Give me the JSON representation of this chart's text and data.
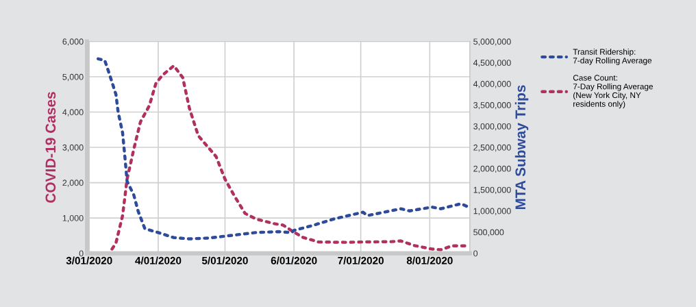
{
  "chart_data": {
    "type": "line",
    "ylabel": "COVID-19 Cases",
    "y2label": "MTA Subway Trips",
    "xlim": [
      "2020-02-29",
      "2020-08-19"
    ],
    "xticks": [
      {
        "value": "2020-03-01",
        "label": "3/01/2020"
      },
      {
        "value": "2020-04-01",
        "label": "4/01/2020"
      },
      {
        "value": "2020-05-01",
        "label": "5/01/2020"
      },
      {
        "value": "2020-06-01",
        "label": "6/01/2020"
      },
      {
        "value": "2020-07-01",
        "label": "7/01/2020"
      },
      {
        "value": "2020-08-01",
        "label": "8/01/2020"
      }
    ],
    "ylim": [
      0,
      6000
    ],
    "yticks": [
      {
        "value": 0,
        "label": "0"
      },
      {
        "value": 1000,
        "label": "1,000"
      },
      {
        "value": 2000,
        "label": "2,000"
      },
      {
        "value": 3000,
        "label": "3,000"
      },
      {
        "value": 4000,
        "label": "4,000"
      },
      {
        "value": 5000,
        "label": "5,000"
      },
      {
        "value": 6000,
        "label": "6,000"
      }
    ],
    "y2lim": [
      0,
      5000000
    ],
    "y2ticks": [
      {
        "value": 0,
        "label": "0"
      },
      {
        "value": 500000,
        "label": "500,000"
      },
      {
        "value": 1000000,
        "label": "1,000,000"
      },
      {
        "value": 1500000,
        "label": "1,500,000"
      },
      {
        "value": 2000000,
        "label": "2,000,000"
      },
      {
        "value": 2500000,
        "label": "2,500,000"
      },
      {
        "value": 3000000,
        "label": "3,000,000"
      },
      {
        "value": 3500000,
        "label": "3,500,000"
      },
      {
        "value": 4000000,
        "label": "4,000,000"
      },
      {
        "value": 4500000,
        "label": "4,500,000"
      },
      {
        "value": 5000000,
        "label": "5,000,000"
      }
    ],
    "grid": true,
    "legend": "right",
    "line_style": "dotted",
    "series": [
      {
        "name": "Transit Ridership:\n7-day Rolling Average",
        "color": "#2e4a9a",
        "axis": "y2",
        "x": [
          "2020-03-05",
          "2020-03-08",
          "2020-03-10",
          "2020-03-13",
          "2020-03-14",
          "2020-03-16",
          "2020-03-17",
          "2020-03-18",
          "2020-03-21",
          "2020-03-23",
          "2020-03-26",
          "2020-04-01",
          "2020-04-08",
          "2020-04-15",
          "2020-04-24",
          "2020-05-02",
          "2020-05-15",
          "2020-05-25",
          "2020-05-31",
          "2020-06-01",
          "2020-06-09",
          "2020-06-19",
          "2020-07-02",
          "2020-07-04",
          "2020-07-19",
          "2020-07-23",
          "2020-08-02",
          "2020-08-06",
          "2020-08-15",
          "2020-08-18"
        ],
        "values": [
          4590000,
          4550000,
          4240000,
          3750000,
          3330000,
          2840000,
          2290000,
          1700000,
          1380000,
          990000,
          580000,
          490000,
          370000,
          340000,
          360000,
          410000,
          490000,
          510000,
          490000,
          540000,
          650000,
          810000,
          970000,
          890000,
          1050000,
          1000000,
          1090000,
          1050000,
          1170000,
          1100000
        ]
      },
      {
        "name": "Case Count:\n7-Day Rolling Average\n(New York City, NY\nresidents only)",
        "color": "#b03060",
        "x": [
          "2020-03-05",
          "2020-03-10",
          "2020-03-13",
          "2020-03-16",
          "2020-03-18",
          "2020-03-21",
          "2020-03-24",
          "2020-03-28",
          "2020-03-31",
          "2020-04-03",
          "2020-04-08",
          "2020-04-12",
          "2020-04-15",
          "2020-04-19",
          "2020-04-27",
          "2020-05-01",
          "2020-05-05",
          "2020-05-10",
          "2020-05-15",
          "2020-05-23",
          "2020-05-27",
          "2020-06-01",
          "2020-06-05",
          "2020-06-12",
          "2020-06-24",
          "2020-07-02",
          "2020-07-15",
          "2020-07-19",
          "2020-07-25",
          "2020-08-02",
          "2020-08-06",
          "2020-08-11",
          "2020-08-18"
        ],
        "values": [
          0,
          0,
          290,
          1070,
          2100,
          2940,
          3720,
          4180,
          4820,
          5050,
          5310,
          4980,
          4110,
          3330,
          2740,
          2100,
          1650,
          1130,
          970,
          840,
          800,
          600,
          450,
          320,
          310,
          320,
          330,
          350,
          220,
          120,
          100,
          210,
          210
        ]
      }
    ]
  }
}
